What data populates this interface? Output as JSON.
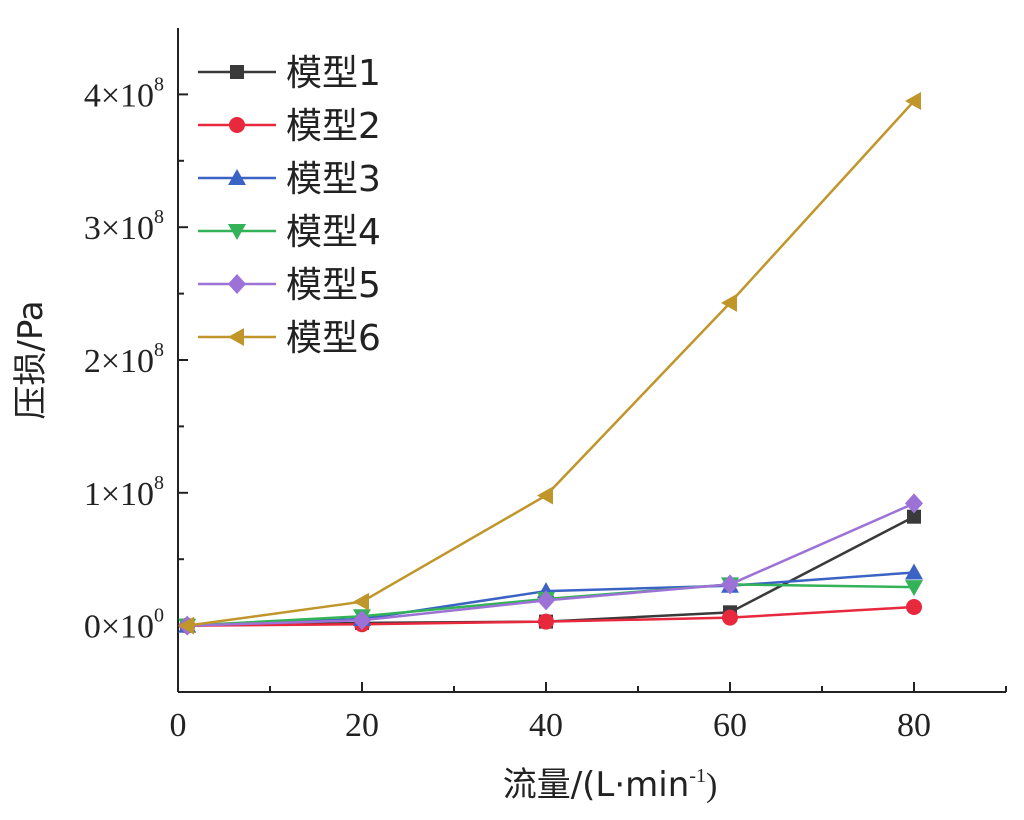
{
  "chart_data": {
    "type": "line",
    "title": "",
    "xlabel": "流量/(L·min",
    "xlabel_sup": "-1",
    "xlabel_close": ")",
    "ylabel": "压损/Pa",
    "xlim": [
      0,
      90
    ],
    "ylim": [
      -50000000,
      450000000
    ],
    "xticks": [
      0,
      20,
      40,
      60,
      80
    ],
    "xtick_labels": [
      "0",
      "20",
      "40",
      "60",
      "80"
    ],
    "yticks": [
      0,
      100000000,
      200000000,
      300000000,
      400000000
    ],
    "ytick_mantissas": [
      "0×10",
      "1×10",
      "2×10",
      "3×10",
      "4×10"
    ],
    "ytick_exponents": [
      "0",
      "8",
      "8",
      "8",
      "8"
    ],
    "legend_position": "top-left",
    "series": [
      {
        "name": "模型1",
        "color": "#3a3a3a",
        "marker": "square",
        "x": [
          1,
          20,
          40,
          60,
          80
        ],
        "y": [
          0,
          2000000,
          3000000,
          10000000,
          82000000
        ]
      },
      {
        "name": "模型2",
        "color": "#e8283c",
        "marker": "circle",
        "x": [
          1,
          20,
          40,
          60,
          80
        ],
        "y": [
          0,
          1000000,
          3000000,
          6000000,
          14000000
        ]
      },
      {
        "name": "模型3",
        "color": "#3b63c4",
        "marker": "triangle-up",
        "x": [
          1,
          20,
          40,
          60,
          80
        ],
        "y": [
          0,
          5000000,
          26000000,
          30000000,
          40000000
        ]
      },
      {
        "name": "模型4",
        "color": "#34b257",
        "marker": "triangle-down",
        "x": [
          1,
          20,
          40,
          60,
          80
        ],
        "y": [
          0,
          7000000,
          20000000,
          31000000,
          29000000
        ]
      },
      {
        "name": "模型5",
        "color": "#9c72d6",
        "marker": "diamond",
        "x": [
          1,
          20,
          40,
          60,
          80
        ],
        "y": [
          0,
          4000000,
          19000000,
          31000000,
          92000000
        ]
      },
      {
        "name": "模型6",
        "color": "#c0962a",
        "marker": "triangle-left",
        "x": [
          1,
          20,
          40,
          60,
          80
        ],
        "y": [
          0,
          18000000,
          98000000,
          243000000,
          395000000
        ]
      }
    ]
  }
}
